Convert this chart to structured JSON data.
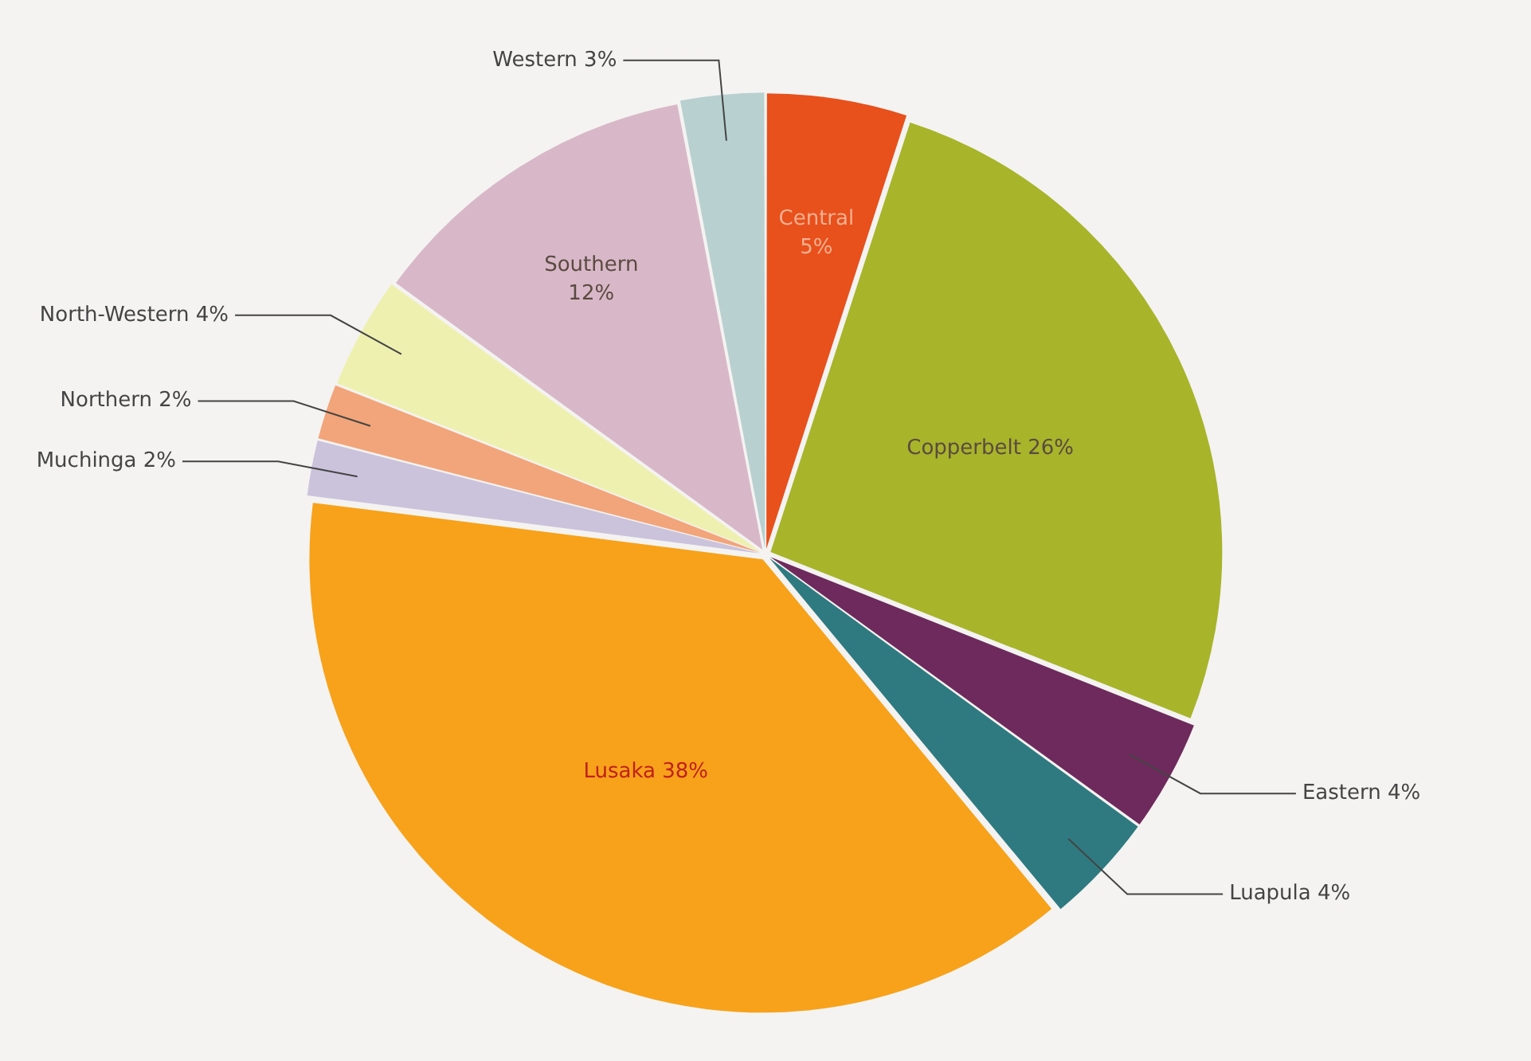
{
  "chart_data": {
    "type": "pie",
    "categories": [
      "Central",
      "Copperbelt",
      "Eastern",
      "Luapula",
      "Lusaka",
      "Muchinga",
      "Northern",
      "North-Western",
      "Southern",
      "Western"
    ],
    "values": [
      5,
      26,
      4,
      4,
      38,
      2,
      2,
      4,
      12,
      3
    ],
    "value_labels": [
      "5%",
      "26%",
      "4%",
      "4%",
      "38%",
      "2%",
      "2%",
      "4%",
      "12%",
      "3%"
    ],
    "colors": [
      "#e8501c",
      "#a8b42a",
      "#6e2a5c",
      "#2e7a80",
      "#f7a21a",
      "#cbc3dc",
      "#f2a57a",
      "#eef0b0",
      "#d8b8c8",
      "#b8d0d0"
    ],
    "legend": false
  }
}
